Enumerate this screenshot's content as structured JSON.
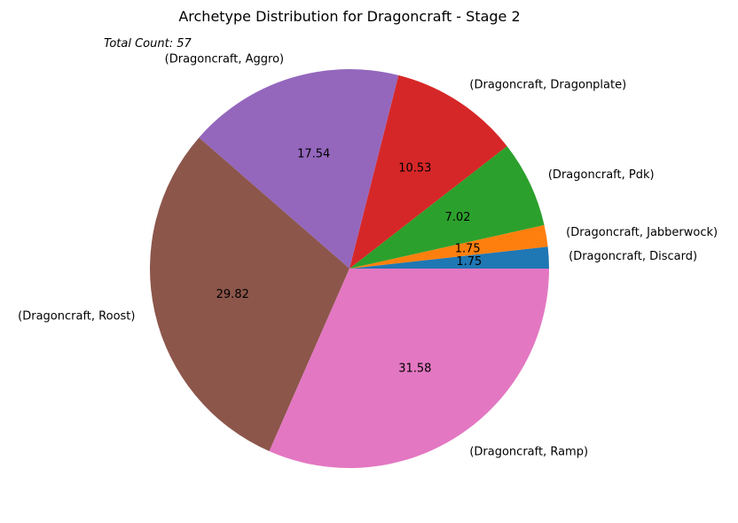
{
  "chart_data": {
    "type": "pie",
    "title": "Archetype Distribution for Dragoncraft - Stage 2",
    "annotation": "Total Count: 57",
    "slices": [
      {
        "label": "(Dragoncraft, Discard)",
        "value": 1.75,
        "color": "#1f77b4"
      },
      {
        "label": "(Dragoncraft, Jabberwock)",
        "value": 1.75,
        "color": "#ff7f0e"
      },
      {
        "label": "(Dragoncraft, Pdk)",
        "value": 7.02,
        "color": "#2ca02c"
      },
      {
        "label": "(Dragoncraft, Dragonplate)",
        "value": 10.53,
        "color": "#d62728"
      },
      {
        "label": "(Dragoncraft, Aggro)",
        "value": 17.54,
        "color": "#9467bd"
      },
      {
        "label": "(Dragoncraft, Roost)",
        "value": 29.82,
        "color": "#8c564b"
      },
      {
        "label": "(Dragoncraft, Ramp)",
        "value": 31.58,
        "color": "#e377c2"
      }
    ],
    "start_angle_deg": 0,
    "direction": "counterclockwise",
    "percent_format": "%.2f"
  }
}
